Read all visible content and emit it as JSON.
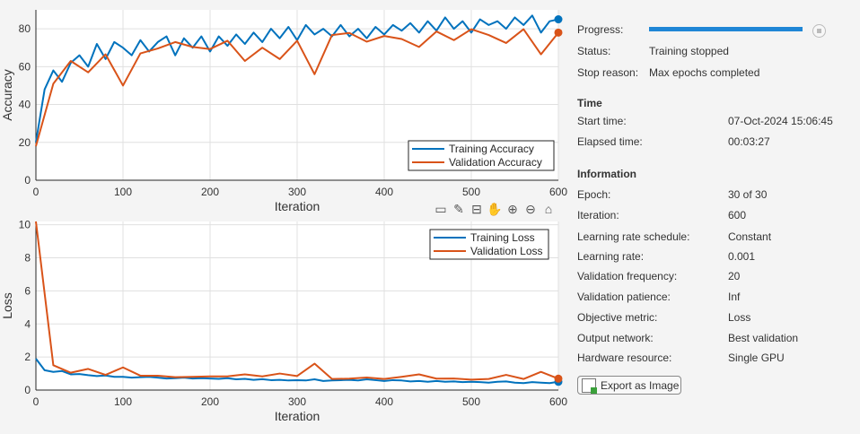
{
  "chart_data": [
    {
      "type": "line",
      "ylabel": "Accuracy",
      "xlabel": "Iteration",
      "xlim": [
        0,
        600
      ],
      "ylim": [
        0,
        90
      ],
      "xticks": [
        0,
        100,
        200,
        300,
        400,
        500,
        600
      ],
      "yticks": [
        0,
        20,
        40,
        60,
        80
      ],
      "grid": true,
      "legend_position": "bottom-right",
      "series": [
        {
          "name": "Training Accuracy",
          "color": "#0072bd",
          "x": [
            0,
            10,
            20,
            30,
            40,
            50,
            60,
            70,
            80,
            90,
            100,
            110,
            120,
            130,
            140,
            150,
            160,
            170,
            180,
            190,
            200,
            210,
            220,
            230,
            240,
            250,
            260,
            270,
            280,
            290,
            300,
            310,
            320,
            330,
            340,
            350,
            360,
            370,
            380,
            390,
            400,
            410,
            420,
            430,
            440,
            450,
            460,
            470,
            480,
            490,
            500,
            510,
            520,
            530,
            540,
            550,
            560,
            570,
            580,
            590,
            600
          ],
          "y": [
            20,
            48,
            58,
            52,
            62,
            66,
            60,
            72,
            64,
            73,
            70,
            66,
            74,
            68,
            73,
            76,
            66,
            75,
            70,
            76,
            68,
            76,
            71,
            77,
            72,
            78,
            73,
            80,
            75,
            81,
            74,
            82,
            77,
            80,
            76,
            82,
            76,
            80,
            75,
            81,
            77,
            82,
            79,
            83,
            78,
            84,
            79,
            86,
            80,
            84,
            78,
            85,
            82,
            84,
            80,
            86,
            82,
            87,
            78,
            84,
            85
          ]
        },
        {
          "name": "Validation Accuracy",
          "color": "#d95319",
          "x": [
            0,
            20,
            40,
            60,
            80,
            100,
            120,
            140,
            160,
            180,
            200,
            220,
            240,
            260,
            280,
            300,
            320,
            340,
            360,
            380,
            400,
            420,
            440,
            460,
            480,
            500,
            520,
            540,
            560,
            580,
            600
          ],
          "y": [
            18,
            51,
            63,
            57,
            66.5,
            50,
            67,
            69.6,
            73,
            70.4,
            69.3,
            73.7,
            63,
            70,
            64,
            73.7,
            56,
            76.7,
            77.8,
            73.2,
            76.2,
            74.6,
            70.4,
            78.6,
            74,
            79.8,
            76.7,
            72.5,
            79.8,
            66.5,
            78
          ]
        }
      ]
    },
    {
      "type": "line",
      "ylabel": "Loss",
      "xlabel": "Iteration",
      "xlim": [
        0,
        600
      ],
      "ylim": [
        0,
        10.2
      ],
      "xticks": [
        0,
        100,
        200,
        300,
        400,
        500,
        600
      ],
      "yticks": [
        0,
        2,
        4,
        6,
        8,
        10
      ],
      "grid": true,
      "legend_position": "top-right",
      "series": [
        {
          "name": "Training Loss",
          "color": "#0072bd",
          "x": [
            0,
            10,
            20,
            30,
            40,
            50,
            60,
            70,
            80,
            90,
            100,
            110,
            120,
            130,
            140,
            150,
            160,
            170,
            180,
            190,
            200,
            210,
            220,
            230,
            240,
            250,
            260,
            270,
            280,
            290,
            300,
            310,
            320,
            330,
            340,
            350,
            360,
            370,
            380,
            390,
            400,
            410,
            420,
            430,
            440,
            450,
            460,
            470,
            480,
            490,
            500,
            510,
            520,
            530,
            540,
            550,
            560,
            570,
            580,
            590,
            600
          ],
          "y": [
            1.9,
            1.2,
            1.1,
            1.15,
            0.95,
            0.97,
            0.9,
            0.85,
            0.88,
            0.8,
            0.8,
            0.75,
            0.78,
            0.8,
            0.75,
            0.7,
            0.72,
            0.75,
            0.7,
            0.72,
            0.7,
            0.68,
            0.72,
            0.65,
            0.68,
            0.62,
            0.66,
            0.6,
            0.62,
            0.58,
            0.6,
            0.58,
            0.65,
            0.55,
            0.58,
            0.6,
            0.62,
            0.58,
            0.65,
            0.6,
            0.55,
            0.6,
            0.58,
            0.52,
            0.55,
            0.5,
            0.55,
            0.5,
            0.52,
            0.48,
            0.5,
            0.48,
            0.45,
            0.5,
            0.52,
            0.45,
            0.42,
            0.48,
            0.45,
            0.42,
            0.5
          ]
        },
        {
          "name": "Validation Loss",
          "color": "#d95319",
          "x": [
            0,
            20,
            40,
            60,
            80,
            100,
            120,
            140,
            160,
            180,
            200,
            220,
            240,
            260,
            280,
            300,
            320,
            340,
            360,
            380,
            400,
            420,
            440,
            460,
            480,
            500,
            520,
            540,
            560,
            580,
            600
          ],
          "y": [
            10.2,
            1.5,
            1.05,
            1.28,
            0.92,
            1.37,
            0.87,
            0.87,
            0.78,
            0.8,
            0.83,
            0.83,
            0.95,
            0.83,
            1.0,
            0.85,
            1.6,
            0.67,
            0.69,
            0.76,
            0.67,
            0.8,
            0.95,
            0.69,
            0.7,
            0.63,
            0.67,
            0.92,
            0.67,
            1.1,
            0.69
          ]
        }
      ]
    }
  ],
  "toolbar": {
    "icons": [
      "export-icon",
      "brush-icon",
      "data-tips-icon",
      "pan-icon",
      "zoom-in-icon",
      "zoom-out-icon",
      "home-icon"
    ]
  },
  "panel": {
    "progress_label": "Progress:",
    "progress": 1.0,
    "status_label": "Status:",
    "status": "Training stopped",
    "stop_reason_label": "Stop reason:",
    "stop_reason": "Max epochs completed",
    "time_heading": "Time",
    "start_time_label": "Start time:",
    "start_time": "07-Oct-2024 15:06:45",
    "elapsed_label": "Elapsed time:",
    "elapsed": "00:03:27",
    "info_heading": "Information",
    "info": [
      {
        "label": "Epoch:",
        "value": "30 of 30"
      },
      {
        "label": "Iteration:",
        "value": "600"
      },
      {
        "label": "Learning rate schedule:",
        "value": "Constant"
      },
      {
        "label": "Learning rate:",
        "value": "0.001"
      },
      {
        "label": "Validation frequency:",
        "value": "20"
      },
      {
        "label": "Validation patience:",
        "value": "Inf"
      },
      {
        "label": "Objective metric:",
        "value": "Loss"
      },
      {
        "label": "Output network:",
        "value": "Best validation"
      },
      {
        "label": "Hardware resource:",
        "value": "Single GPU"
      }
    ],
    "export_label": "Export as Image"
  }
}
